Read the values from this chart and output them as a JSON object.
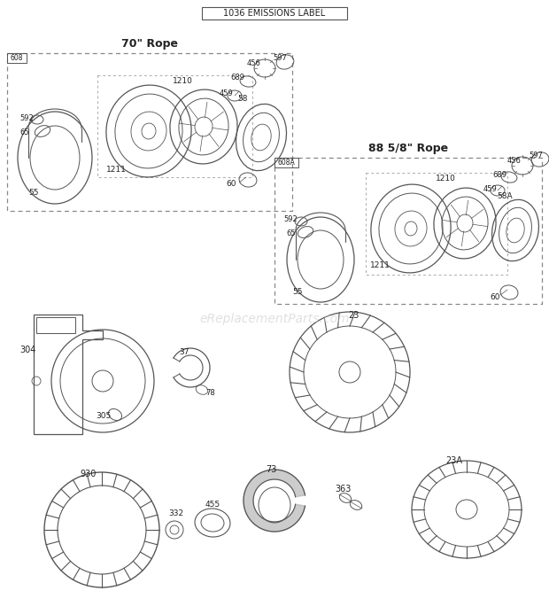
{
  "title": "1036 EMISSIONS LABEL",
  "bg_color": "#ffffff",
  "line_color": "#555555",
  "text_color": "#222222",
  "watermark": "eReplacementParts.com",
  "box1_title": "70\" Rope",
  "box1_label": "608",
  "box2_title": "88 5/8\" Rope",
  "box2_label": "608A",
  "figsize": [
    6.2,
    6.93
  ],
  "dpi": 100
}
